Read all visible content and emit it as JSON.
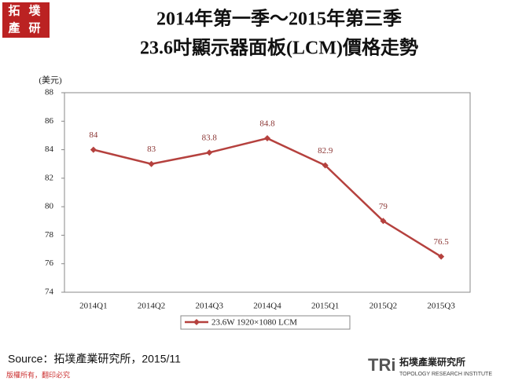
{
  "chart_data": {
    "type": "line",
    "title": "2014年第一季～2015年第三季",
    "subtitle": "23.6吋顯示器面板(LCM)價格走勢",
    "y_label": "(美元)",
    "categories": [
      "2014Q1",
      "2014Q2",
      "2014Q3",
      "2014Q4",
      "2015Q1",
      "2015Q2",
      "2015Q3"
    ],
    "series": [
      {
        "name": "23.6W 1920×1080 LCM",
        "color": "#b5413e",
        "values": [
          84,
          83,
          83.8,
          84.8,
          82.9,
          79,
          76.5
        ]
      }
    ],
    "ylim": [
      74,
      88
    ],
    "yticks": [
      74,
      76,
      78,
      80,
      82,
      84,
      86,
      88
    ],
    "grid": false,
    "legend": "bottom"
  },
  "logo": {
    "top": [
      "拓",
      "墣",
      "產",
      "研"
    ],
    "bottom_mark": "TRi",
    "bottom_name": "拓墣產業研究所",
    "bottom_en": "TOPOLOGY RESEARCH INSTITUTE"
  },
  "source": "Source：拓墣產業研究所，2015/11",
  "copyright": "版權所有，翻印必究"
}
